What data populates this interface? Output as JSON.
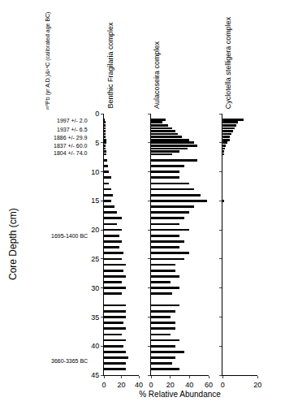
{
  "chart_data": {
    "type": "bar",
    "orientation": "horizontal",
    "ylabel": "Core Depth (cm)",
    "xlabel": "% Relative Abundance",
    "ylim": [
      0,
      45
    ],
    "yticks": [
      0,
      5,
      10,
      15,
      20,
      25,
      30,
      35,
      40,
      45
    ],
    "grid": false,
    "date_title": "²¹⁰Pb (yr A.D.)&¹⁴C (calibrated age BC)",
    "dates": [
      {
        "text": "1997 +/- 2.0",
        "y": 1.2
      },
      {
        "text": "1937 +/- 6.5",
        "y": 2.7
      },
      {
        "text": "1886 +/- 29.9",
        "y": 4.1
      },
      {
        "text": "1837 +/- 60.0",
        "y": 5.5
      },
      {
        "text": "1804 +/- 74.0",
        "y": 6.8
      },
      {
        "text": "1695-1400 BC",
        "y": 21
      },
      {
        "text": "3660-3365 BC",
        "y": 42.5
      }
    ],
    "y": [
      1,
      1.5,
      2,
      2.5,
      3,
      3.5,
      4,
      4.5,
      5,
      5.5,
      6,
      6.5,
      7,
      8,
      9,
      10,
      11,
      12,
      13,
      14,
      15,
      16,
      17,
      18,
      19,
      20,
      21,
      22,
      23,
      24,
      25,
      26,
      27,
      28,
      29,
      30,
      31,
      33,
      34,
      35,
      36,
      37,
      38,
      39,
      40,
      41,
      42,
      43,
      44
    ],
    "series": [
      {
        "name": "Benthic Fragilaria complex",
        "color": "#000000",
        "xlim": [
          0,
          40
        ],
        "xticks": [
          0,
          20,
          40
        ],
        "values": [
          0.5,
          1,
          1,
          1.5,
          1.5,
          2,
          2,
          2.5,
          3,
          2,
          2,
          3,
          3,
          4,
          5,
          6,
          8,
          6,
          8,
          10,
          8,
          12,
          15,
          20,
          15,
          20,
          18,
          20,
          18,
          22,
          20,
          25,
          22,
          25,
          20,
          25,
          20,
          25,
          25,
          25,
          22,
          25,
          20,
          25,
          22,
          25,
          28,
          25,
          25
        ]
      },
      {
        "name": "Aulacoseira complex",
        "color": "#000000",
        "xlim": [
          0,
          60
        ],
        "xticks": [
          0,
          20,
          40,
          60
        ],
        "values": [
          15,
          12,
          18,
          22,
          25,
          28,
          32,
          40,
          45,
          48,
          38,
          30,
          22,
          48,
          35,
          30,
          30,
          40,
          45,
          52,
          58,
          45,
          40,
          35,
          30,
          40,
          30,
          35,
          30,
          40,
          35,
          25,
          25,
          30,
          20,
          30,
          22,
          30,
          25,
          20,
          25,
          25,
          20,
          30,
          25,
          35,
          25,
          22,
          30
        ]
      },
      {
        "name": "Cyclotella stelligera complex",
        "color": "#000000",
        "xlim": [
          0,
          20
        ],
        "xticks": [
          0,
          20
        ],
        "values": [
          12,
          9,
          8,
          7,
          6,
          5,
          4,
          4,
          3,
          2,
          1.5,
          1,
          0.5,
          0,
          0,
          0,
          0,
          0,
          0,
          0,
          1,
          0,
          0,
          0,
          0,
          0,
          0,
          0,
          0,
          0,
          0,
          0,
          0,
          0,
          0,
          0,
          0,
          0,
          0,
          0,
          0,
          0,
          0,
          0,
          0,
          0,
          0,
          0,
          0
        ]
      }
    ]
  }
}
